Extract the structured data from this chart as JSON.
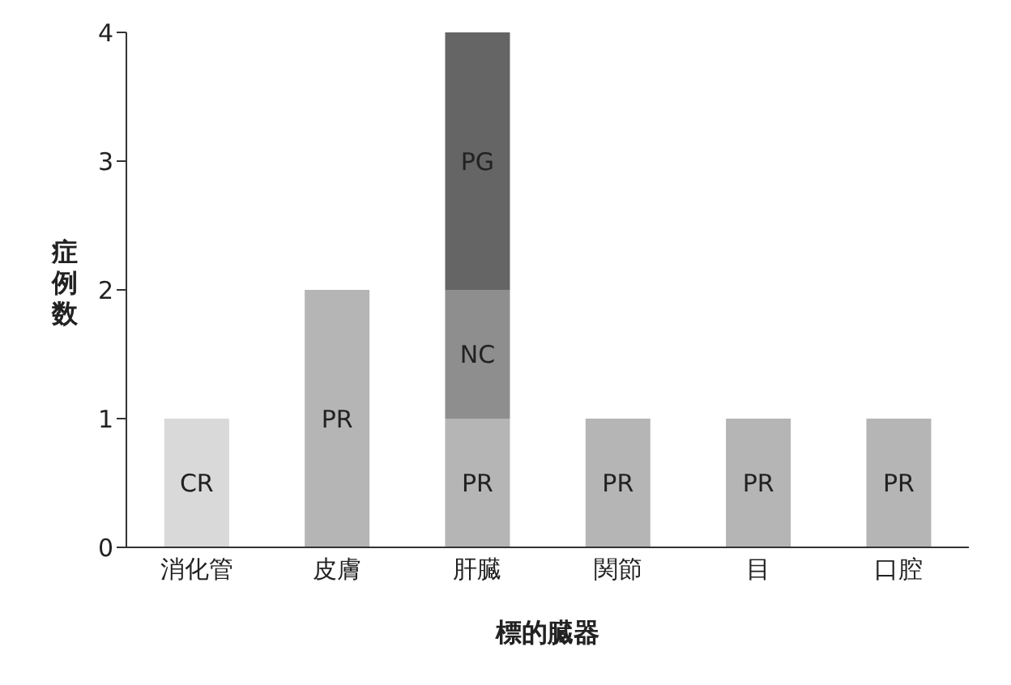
{
  "chart_data": {
    "type": "bar",
    "stacked": true,
    "xlabel": "標的臓器",
    "ylabel": "症例数",
    "categories": [
      "消化管",
      "皮膚",
      "肝臓",
      "関節",
      "目",
      "口腔"
    ],
    "series": [
      {
        "name": "CR",
        "color": "#d9d9d9",
        "values": [
          1,
          null,
          null,
          null,
          null,
          null
        ]
      },
      {
        "name": "PR",
        "color": "#b5b5b5",
        "values": [
          null,
          2,
          1,
          1,
          1,
          1
        ]
      },
      {
        "name": "NC",
        "color": "#8e8e8e",
        "values": [
          null,
          null,
          1,
          null,
          null,
          null
        ]
      },
      {
        "name": "PG",
        "color": "#656565",
        "values": [
          null,
          null,
          2,
          null,
          null,
          null
        ]
      }
    ],
    "ylim": [
      0,
      4
    ],
    "yticks": [
      0,
      1,
      2,
      3,
      4
    ],
    "grid": false,
    "legend": false
  }
}
